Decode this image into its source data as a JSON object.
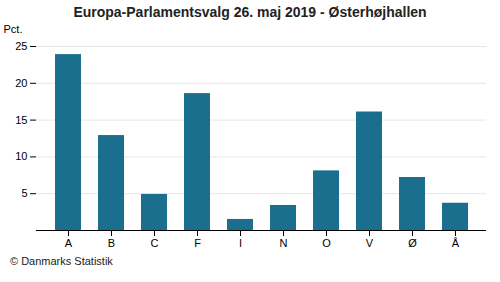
{
  "chart_data": {
    "type": "bar",
    "title": "Europa-Parlamentsvalg 26. maj 2019 - Østerhøjhallen",
    "categories": [
      "A",
      "B",
      "C",
      "F",
      "I",
      "N",
      "O",
      "V",
      "Ø",
      "Å"
    ],
    "values": [
      23.9,
      12.9,
      4.9,
      18.6,
      1.5,
      3.4,
      8.1,
      16.1,
      7.2,
      3.7
    ],
    "color": "#1a6e8e",
    "ylabel": "Pct.",
    "ylim": [
      0,
      25
    ],
    "yticks": [
      5,
      10,
      15,
      20,
      25
    ],
    "grid": true,
    "caption": "© Danmarks Statistik"
  }
}
